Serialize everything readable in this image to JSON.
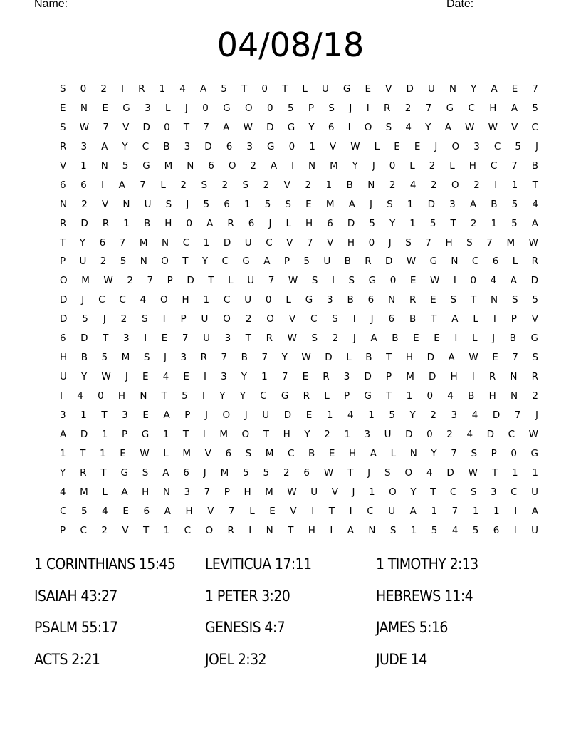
{
  "header": {
    "name_label": "Name: ______________________________________________________",
    "date_label": "Date: _______"
  },
  "title": "04/08/18",
  "grid": [
    "S 0 2 I R 1 4 A 5 T 0 T L U G E V D U N Y A E 7",
    "E N E G 3 L J 0 G O 0 5 P S J I R 2 7 G C H A 5",
    "S W 7 V D 0 T 7 A W D G Y 6 I O S 4 Y A W W V C",
    "R 3 A Y C B 3 D 6 3 G 0 1 V W L E E J O 3 C 5 J",
    "V 1 N 5 G M N 6 O 2 A I N M Y J 0 L 2 L H C 7 B",
    "6 6 I A 7 L 2 S 2 S 2 V 2 1 B N 2 4 2 O 2 I 1 T",
    "N 2 V N U S J 5 6 1 5 S E M A J S 1 D 3 A B 5 4",
    "R D R 1 B H 0 A R 6 J L H 6 D 5 Y 1 5 T 2 1 5 A",
    "T Y 6 7 M N C 1 D U C V 7 V H 0 J S 7 H S 7 M W",
    "P U 2 5 N O T Y C G A P 5 U B R D W G N C 6 L R",
    "O M W 2 7 P D T L U 7 W S I S G 0 E W I 0 4 A D",
    "D J C C 4 O H 1 C U 0 L G 3 B 6 N R E S T N S 5",
    "D 5 J 2 S I P U O 2 O V C S I J 6 B T A L I P V",
    "6 D T 3 I E 7 U 3 T R W S 2 J A B E E I L J B G",
    "H B 5 M S J 3 R 7 B 7 Y W D L B T H D A W E 7 S",
    "U Y W J E 4 E I 3 Y 1 7 E R 3 D P M D H I R N R",
    "I 4 0 H N T 5 I Y Y C G R L P G T 1 0 4 B H N 2",
    "3 1 T 3 E A P J O J U D E 1 4 1 5 Y 2 3 4 D 7 J",
    "A D 1 P G 1 T I M O T H Y 2 1 3 U D 0 2 4 D C W",
    "1 T 1 E W L M V 6 S M C B E H A L N Y 7 S P 0 G",
    "Y R T G S A 6 J M 5 5 2 6 W T J S O 4 D W T 1 1",
    "4 M L A H N 3 7 P H M W U V J 1 O Y T C S 3 C U",
    "C 5 4 E 6 A H V 7 L E V I T I C U A 1 7 1 1 I A",
    "P C 2 V T 1 C O R I N T H I A N S 1 5 4 5 6 I U"
  ],
  "words": [
    [
      "1 CORINTHIANS 15:45",
      "LEVITICUA 17:11",
      "1 TIMOTHY 2:13"
    ],
    [
      "ISAIAH 43:27",
      "1 PETER 3:20",
      "HEBREWS 11:4"
    ],
    [
      "PSALM 55:17",
      "GENESIS 4:7",
      "JAMES 5:16"
    ],
    [
      "ACTS 2:21",
      "JOEL 2:32",
      "JUDE 14"
    ]
  ]
}
